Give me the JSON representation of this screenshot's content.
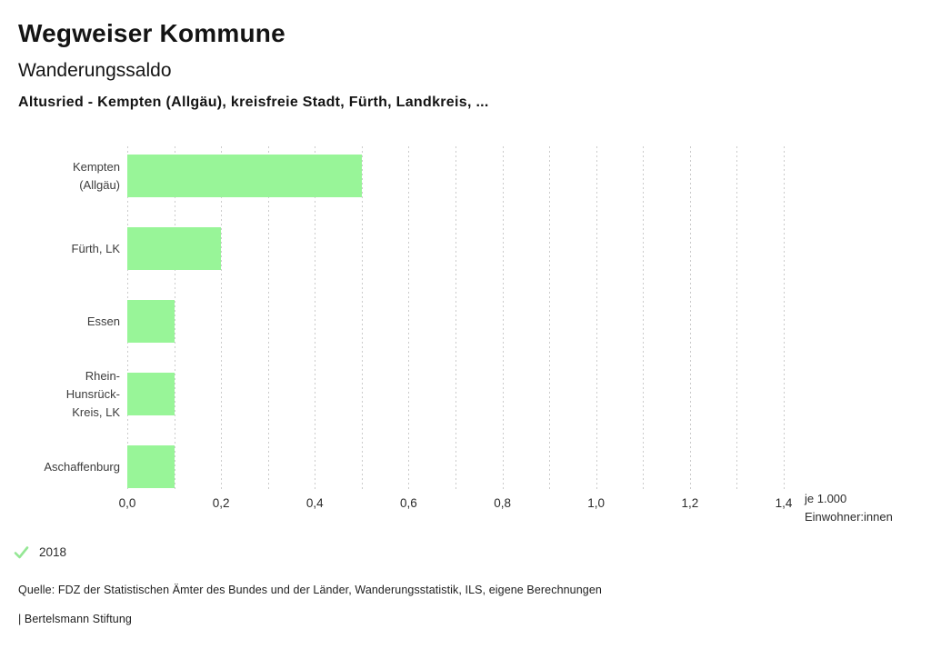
{
  "header": {
    "title": "Wegweiser Kommune",
    "subtitle": "Wanderungssaldo",
    "selection": "Altusried - Kempten (Allgäu), kreisfreie Stadt, Fürth, Landkreis, ..."
  },
  "chart_data": {
    "type": "bar",
    "orientation": "horizontal",
    "title": "Wanderungssaldo",
    "categories": [
      "Kempten (Allgäu)",
      "Fürth, LK",
      "Essen",
      "Rhein-Hunsrück-Kreis, LK",
      "Aschaffenburg"
    ],
    "category_display_lines": [
      [
        "Kempten",
        "(Allgäu)"
      ],
      [
        "Fürth, LK"
      ],
      [
        "Essen"
      ],
      [
        "Rhein-Hunsrück-",
        "Kreis, LK"
      ],
      [
        "Aschaffenburg"
      ]
    ],
    "values": [
      0.5,
      0.2,
      0.1,
      0.1,
      0.1
    ],
    "year": "2018",
    "xlim": [
      0,
      1.4
    ],
    "grid_step": 0.1,
    "grid_style": "vertical dotted",
    "x_ticks": [
      {
        "value": 0.0,
        "label": "0,0"
      },
      {
        "value": 0.2,
        "label": "0,2"
      },
      {
        "value": 0.4,
        "label": "0,4"
      },
      {
        "value": 0.6,
        "label": "0,6"
      },
      {
        "value": 0.8,
        "label": "0,8"
      },
      {
        "value": 1.0,
        "label": "1,0"
      },
      {
        "value": 1.2,
        "label": "1,2"
      },
      {
        "value": 1.4,
        "label": "1,4"
      }
    ],
    "unit_label_lines": [
      "je 1.000",
      "Einwohner:innen"
    ],
    "bar_color": "#98f598",
    "gridline_color": "#cbcbcb",
    "legend_position": "bottom-left"
  },
  "legend": {
    "check_icon": "check-icon",
    "check_color": "#94e794",
    "year_label": "2018"
  },
  "footer": {
    "source": "Quelle: FDZ der Statistischen Ämter des Bundes und der Länder, Wanderungsstatistik, ILS, eigene Berechnungen",
    "branding": "| Bertelsmann Stiftung"
  }
}
